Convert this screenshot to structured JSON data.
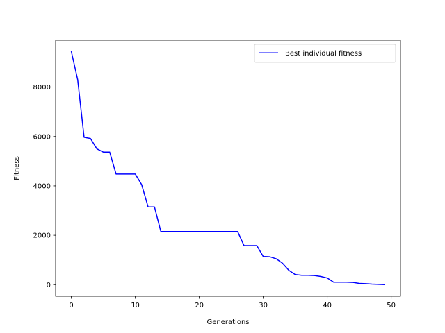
{
  "chart_data": {
    "type": "line",
    "title": "",
    "xlabel": "Generations",
    "ylabel": "Fitness",
    "xlim": [
      -2.45,
      51.45
    ],
    "ylim": [
      -470,
      9900
    ],
    "xticks": [
      0,
      10,
      20,
      30,
      40,
      50
    ],
    "yticks": [
      0,
      2000,
      4000,
      6000,
      8000
    ],
    "grid": false,
    "legend_position": "top-right",
    "series": [
      {
        "name": "Best individual fitness",
        "color": "#0000ff",
        "x": [
          0,
          1,
          2,
          3,
          4,
          5,
          6,
          7,
          8,
          9,
          10,
          11,
          12,
          13,
          14,
          15,
          16,
          17,
          18,
          19,
          20,
          21,
          22,
          23,
          24,
          25,
          26,
          27,
          28,
          29,
          30,
          31,
          32,
          33,
          34,
          35,
          36,
          37,
          38,
          39,
          40,
          41,
          42,
          43,
          44,
          45,
          46,
          47,
          48,
          49
        ],
        "y": [
          9450,
          8300,
          5970,
          5920,
          5500,
          5370,
          5370,
          4480,
          4480,
          4480,
          4480,
          4050,
          3150,
          3150,
          2150,
          2150,
          2150,
          2150,
          2150,
          2150,
          2150,
          2150,
          2150,
          2150,
          2150,
          2150,
          2150,
          1580,
          1580,
          1580,
          1140,
          1130,
          1050,
          870,
          580,
          410,
          380,
          380,
          370,
          330,
          270,
          100,
          100,
          100,
          90,
          50,
          40,
          20,
          10,
          0
        ]
      }
    ]
  }
}
